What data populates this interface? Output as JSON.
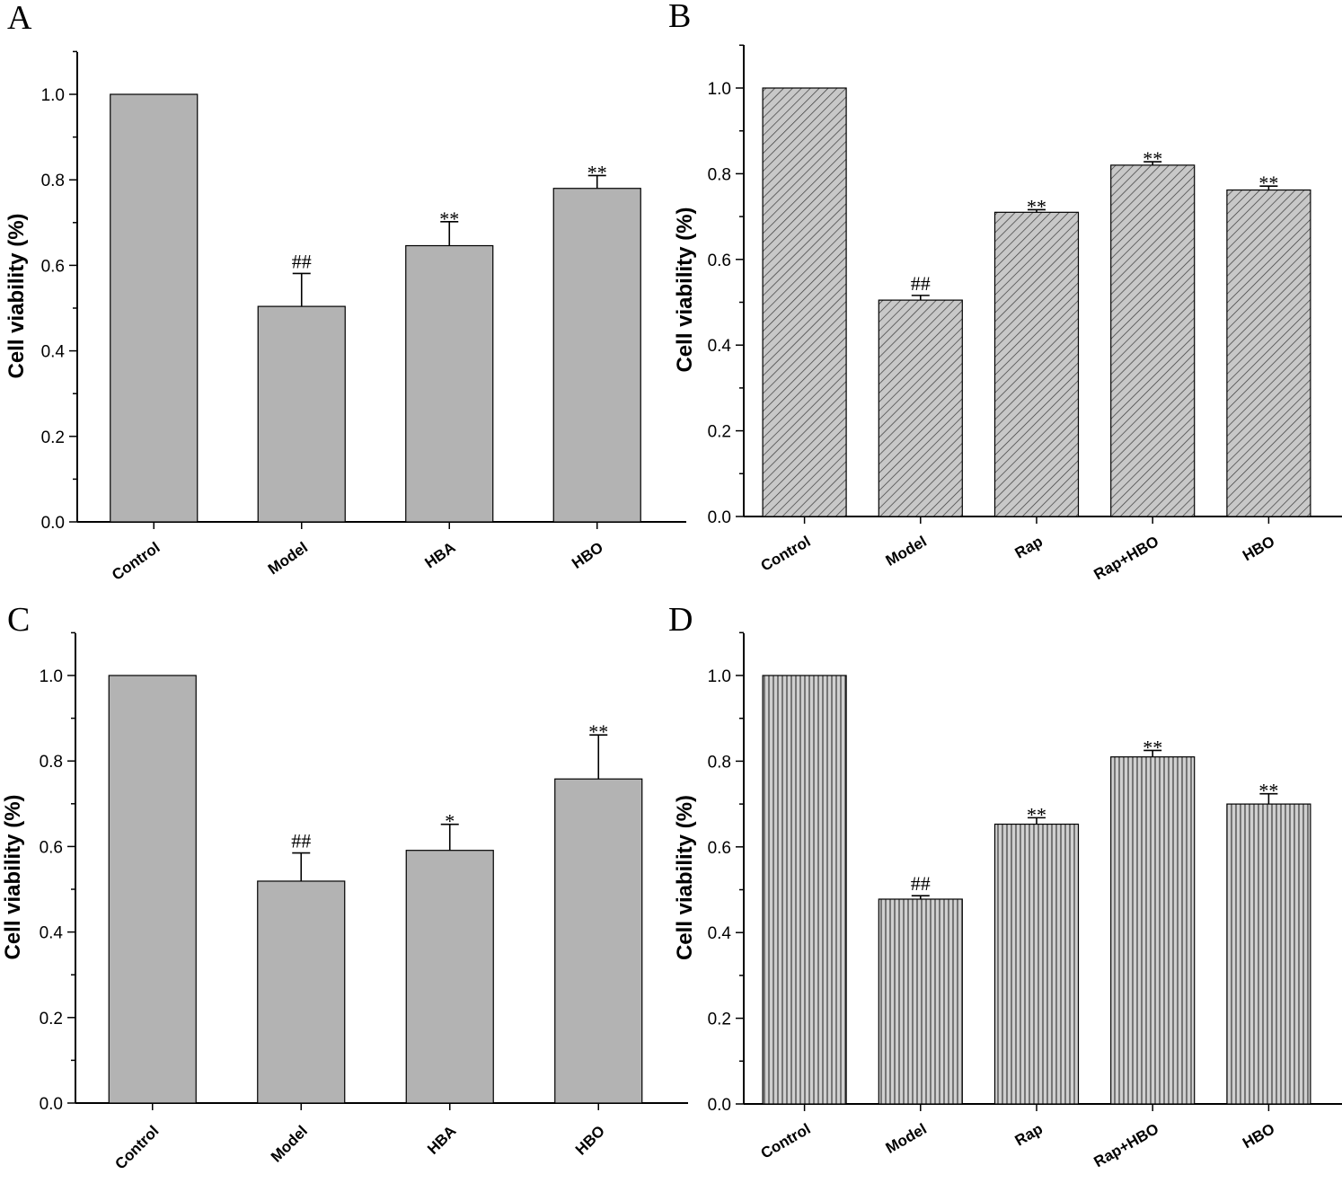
{
  "chart_data": [
    {
      "panel": "A",
      "type": "bar",
      "fill": "solid",
      "ylabel": "Cell viability (%)",
      "ylim": [
        0,
        1.1
      ],
      "yticks": [
        "0.0",
        "0.2",
        "0.4",
        "0.6",
        "0.8",
        "1.0"
      ],
      "categories": [
        "Control",
        "Model",
        "HBA",
        "HBO"
      ],
      "values": [
        1.0,
        0.504,
        0.646,
        0.78
      ],
      "errors": [
        0,
        0.077,
        0.056,
        0.03
      ],
      "significance": [
        "",
        "##",
        "**",
        "**"
      ]
    },
    {
      "panel": "B",
      "type": "bar",
      "fill": "diagonal-hatch",
      "ylabel": "Cell viability (%)",
      "ylim": [
        0,
        1.1
      ],
      "yticks": [
        "0.0",
        "0.2",
        "0.4",
        "0.6",
        "0.8",
        "1.0"
      ],
      "categories": [
        "Control",
        "Model",
        "Rap",
        "Rap+HBO",
        "HBO"
      ],
      "values": [
        1.0,
        0.505,
        0.71,
        0.82,
        0.762
      ],
      "errors": [
        0,
        0.011,
        0.006,
        0.008,
        0.009
      ],
      "significance": [
        "",
        "##",
        "**",
        "**",
        "**"
      ]
    },
    {
      "panel": "C",
      "type": "bar",
      "fill": "solid",
      "ylabel": "Cell viability (%)",
      "ylim": [
        0,
        1.1
      ],
      "yticks": [
        "0.0",
        "0.2",
        "0.4",
        "0.6",
        "0.8",
        "1.0"
      ],
      "categories": [
        "Control",
        "Model",
        "HBA",
        "HBO"
      ],
      "values": [
        1.0,
        0.519,
        0.591,
        0.758
      ],
      "errors": [
        0,
        0.066,
        0.061,
        0.103
      ],
      "significance": [
        "",
        "##",
        "*",
        "**"
      ]
    },
    {
      "panel": "D",
      "type": "bar",
      "fill": "vertical-hatch",
      "ylabel": "Cell viability (%)",
      "ylim": [
        0,
        1.1
      ],
      "yticks": [
        "0.0",
        "0.2",
        "0.4",
        "0.6",
        "0.8",
        "1.0"
      ],
      "categories": [
        "Control",
        "Model",
        "Rap",
        "Rap+HBO",
        "HBO"
      ],
      "values": [
        1.0,
        0.478,
        0.653,
        0.81,
        0.7
      ],
      "errors": [
        0,
        0.008,
        0.015,
        0.015,
        0.024
      ],
      "significance": [
        "",
        "##",
        "**",
        "**",
        "**"
      ]
    }
  ],
  "colors": {
    "bar_fill": "#b3b3b3",
    "hatch_line": "#3a3a3a",
    "axis": "#000000"
  }
}
